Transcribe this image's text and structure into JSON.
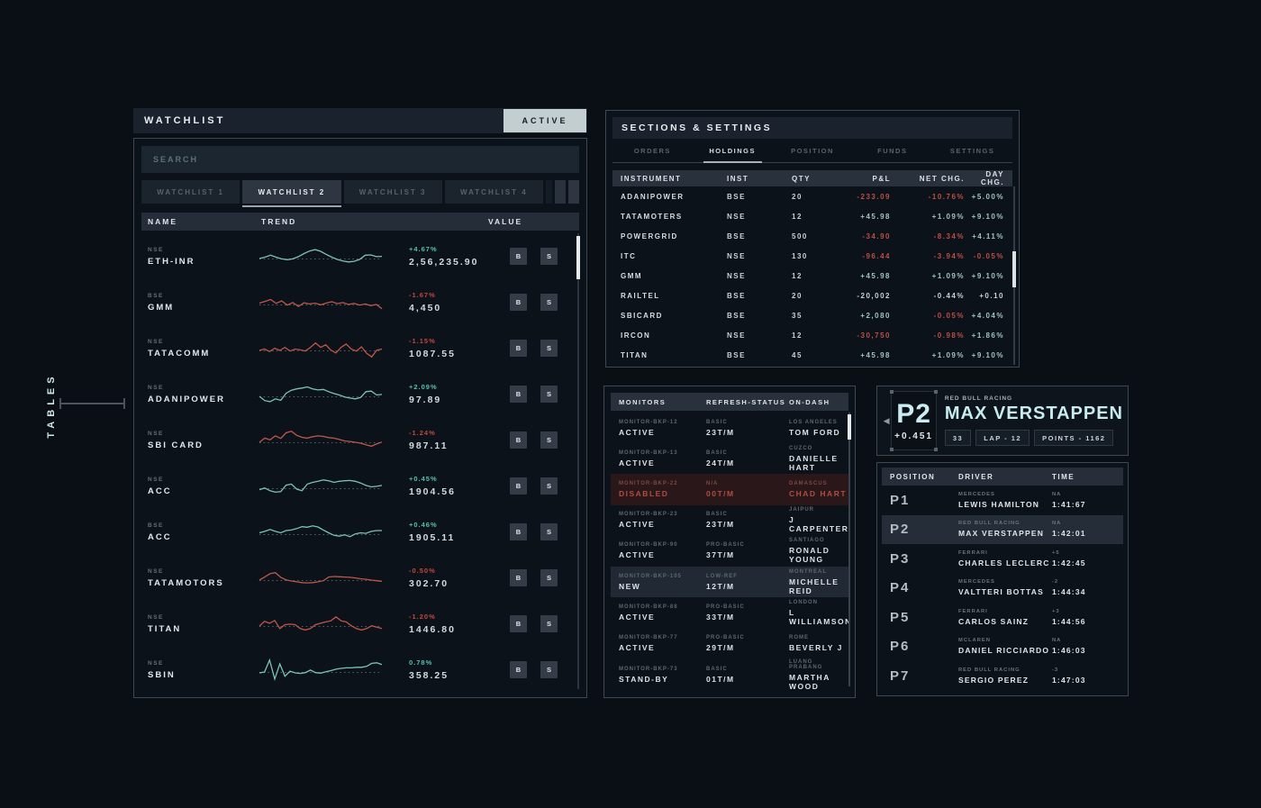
{
  "side_label": "TABLES",
  "colors": {
    "accent_teal": "#7cc2b9",
    "accent_red": "#bd574b",
    "highlight_cyan": "#c6ecef",
    "active_button_bg": "#c3ced1",
    "panel_bg": "#0c1219",
    "page_bg": "#0a0f15"
  },
  "watchlist": {
    "title": "WATCHLIST",
    "status": "ACTIVE",
    "search_placeholder": "SEARCH",
    "buy_label": "B",
    "sell_label": "S",
    "tabs": [
      {
        "label": "WATCHLIST 1",
        "active": false
      },
      {
        "label": "WATCHLIST 2",
        "active": true
      },
      {
        "label": "WATCHLIST 3",
        "active": false
      },
      {
        "label": "WATCHLIST 4",
        "active": false
      }
    ],
    "columns": [
      "NAME",
      "TREND",
      "VALUE"
    ],
    "rows": [
      {
        "exchange": "NSE",
        "name": "ETH-INR",
        "trend": "up",
        "pct": "+4.67%",
        "value": "2,56,235.90",
        "spark": [
          0.45,
          0.5,
          0.57,
          0.5,
          0.44,
          0.41,
          0.44,
          0.52,
          0.63,
          0.72,
          0.77,
          0.71,
          0.6,
          0.5,
          0.42,
          0.36,
          0.33,
          0.35,
          0.42,
          0.57,
          0.58,
          0.52,
          0.53
        ]
      },
      {
        "exchange": "BSE",
        "name": "GMM",
        "trend": "down",
        "pct": "-1.67%",
        "value": "4,450",
        "spark": [
          0.5,
          0.56,
          0.63,
          0.49,
          0.58,
          0.43,
          0.52,
          0.38,
          0.51,
          0.47,
          0.5,
          0.44,
          0.5,
          0.55,
          0.48,
          0.52,
          0.45,
          0.49,
          0.43,
          0.47,
          0.41,
          0.45,
          0.3
        ]
      },
      {
        "exchange": "NSE",
        "name": "TATACOMM",
        "trend": "down",
        "pct": "-1.15%",
        "value": "1087.55",
        "spark": [
          0.45,
          0.5,
          0.41,
          0.53,
          0.45,
          0.56,
          0.43,
          0.5,
          0.47,
          0.43,
          0.56,
          0.72,
          0.56,
          0.65,
          0.46,
          0.36,
          0.56,
          0.68,
          0.5,
          0.43,
          0.58,
          0.35,
          0.22,
          0.46,
          0.5
        ]
      },
      {
        "exchange": "NSE",
        "name": "ADANIPOWER",
        "trend": "up",
        "pct": "+2.09%",
        "value": "97.89",
        "spark": [
          0.45,
          0.3,
          0.26,
          0.36,
          0.31,
          0.56,
          0.67,
          0.72,
          0.75,
          0.79,
          0.72,
          0.68,
          0.7,
          0.62,
          0.55,
          0.5,
          0.43,
          0.39,
          0.36,
          0.41,
          0.62,
          0.64,
          0.5,
          0.52
        ]
      },
      {
        "exchange": "NSE",
        "name": "SBI CARD",
        "trend": "down",
        "pct": "-1.24%",
        "value": "987.11",
        "spark": [
          0.45,
          0.6,
          0.54,
          0.68,
          0.59,
          0.79,
          0.85,
          0.7,
          0.63,
          0.6,
          0.65,
          0.68,
          0.66,
          0.62,
          0.6,
          0.55,
          0.5,
          0.48,
          0.45,
          0.42,
          0.36,
          0.31,
          0.39,
          0.46
        ]
      },
      {
        "exchange": "NSE",
        "name": "ACC",
        "trend": "up",
        "pct": "+0.45%",
        "value": "1904.56",
        "spark": [
          0.4,
          0.46,
          0.36,
          0.31,
          0.33,
          0.56,
          0.6,
          0.42,
          0.36,
          0.6,
          0.66,
          0.7,
          0.75,
          0.72,
          0.66,
          0.7,
          0.72,
          0.73,
          0.7,
          0.64,
          0.55,
          0.5,
          0.52,
          0.55
        ]
      },
      {
        "exchange": "BSE",
        "name": "ACC",
        "trend": "up",
        "pct": "+0.46%",
        "value": "1905.11",
        "spark": [
          0.5,
          0.55,
          0.62,
          0.55,
          0.5,
          0.58,
          0.6,
          0.65,
          0.72,
          0.7,
          0.75,
          0.71,
          0.6,
          0.5,
          0.41,
          0.38,
          0.43,
          0.36,
          0.46,
          0.5,
          0.48,
          0.55,
          0.58,
          0.58
        ]
      },
      {
        "exchange": "NSE",
        "name": "TATAMOTORS",
        "trend": "down",
        "pct": "-0.50%",
        "value": "302.70",
        "spark": [
          0.45,
          0.56,
          0.68,
          0.72,
          0.55,
          0.46,
          0.42,
          0.39,
          0.36,
          0.35,
          0.36,
          0.39,
          0.43,
          0.56,
          0.58,
          0.57,
          0.56,
          0.55,
          0.53,
          0.5,
          0.48,
          0.45,
          0.43,
          0.41
        ]
      },
      {
        "exchange": "NSE",
        "name": "TITAN",
        "trend": "down",
        "pct": "-1.20%",
        "value": "1446.80",
        "spark": [
          0.45,
          0.62,
          0.55,
          0.65,
          0.36,
          0.5,
          0.52,
          0.5,
          0.36,
          0.31,
          0.36,
          0.5,
          0.55,
          0.6,
          0.64,
          0.78,
          0.64,
          0.6,
          0.46,
          0.36,
          0.31,
          0.36,
          0.46,
          0.41,
          0.36
        ]
      },
      {
        "exchange": "NSE",
        "name": "SBIN",
        "trend": "up",
        "pct": "0.78%",
        "value": "358.25",
        "spark": [
          0.42,
          0.45,
          0.88,
          0.2,
          0.74,
          0.3,
          0.48,
          0.42,
          0.4,
          0.43,
          0.52,
          0.43,
          0.41,
          0.46,
          0.5,
          0.55,
          0.58,
          0.6,
          0.6,
          0.62,
          0.62,
          0.65,
          0.76,
          0.78,
          0.72
        ]
      }
    ]
  },
  "sections": {
    "title": "SECTIONS & SETTINGS",
    "tabs": [
      {
        "label": "ORDERS",
        "active": false
      },
      {
        "label": "HOLDINGS",
        "active": true
      },
      {
        "label": "POSITION",
        "active": false
      },
      {
        "label": "FUNDS",
        "active": false
      },
      {
        "label": "SETTINGS",
        "active": false
      }
    ],
    "columns": [
      "INSTRUMENT",
      "INST",
      "QTY",
      "P&L",
      "NET CHG.",
      "DAY CHG."
    ],
    "rows": [
      {
        "instrument": "ADANIPOWER",
        "inst": "BSE",
        "qty": "20",
        "pnl": "-233.09",
        "pnl_c": "neg",
        "net": "-10.76%",
        "net_c": "neg",
        "day": "+5.00%",
        "day_c": "pos"
      },
      {
        "instrument": "TATAMOTERS",
        "inst": "NSE",
        "qty": "12",
        "pnl": "+45.98",
        "pnl_c": "pos",
        "net": "+1.09%",
        "net_c": "pos",
        "day": "+9.10%",
        "day_c": "pos"
      },
      {
        "instrument": "POWERGRID",
        "inst": "BSE",
        "qty": "500",
        "pnl": "-34.90",
        "pnl_c": "neg",
        "net": "-8.34%",
        "net_c": "neg",
        "day": "+4.11%",
        "day_c": "pos"
      },
      {
        "instrument": "ITC",
        "inst": "NSE",
        "qty": "130",
        "pnl": "-96.44",
        "pnl_c": "neg",
        "net": "-3.94%",
        "net_c": "neg",
        "day": "-0.05%",
        "day_c": "neg"
      },
      {
        "instrument": "GMM",
        "inst": "NSE",
        "qty": "12",
        "pnl": "+45.98",
        "pnl_c": "pos",
        "net": "+1.09%",
        "net_c": "pos",
        "day": "+9.10%",
        "day_c": "pos"
      },
      {
        "instrument": "RAILTEL",
        "inst": "BSE",
        "qty": "20",
        "pnl": "-20,002",
        "pnl_c": "white",
        "net": "-0.44%",
        "net_c": "white",
        "day": "+0.10",
        "day_c": "white"
      },
      {
        "instrument": "SBICARD",
        "inst": "BSE",
        "qty": "35",
        "pnl": "+2,080",
        "pnl_c": "pos",
        "net": "-0.05%",
        "net_c": "neg",
        "day": "+4.04%",
        "day_c": "pos"
      },
      {
        "instrument": "IRCON",
        "inst": "NSE",
        "qty": "12",
        "pnl": "-30,750",
        "pnl_c": "neg",
        "net": "-0.98%",
        "net_c": "neg",
        "day": "+1.86%",
        "day_c": "pos"
      },
      {
        "instrument": "TITAN",
        "inst": "BSE",
        "qty": "45",
        "pnl": "+45.98",
        "pnl_c": "pos",
        "net": "+1.09%",
        "net_c": "pos",
        "day": "+9.10%",
        "day_c": "pos"
      }
    ]
  },
  "monitors": {
    "columns": [
      "MONITORS",
      "REFRESH-STATUS",
      "ON-DASH"
    ],
    "rows": [
      {
        "id": "MONITOR-BKP-12",
        "status": "ACTIVE",
        "plan": "BASIC",
        "rate": "23T/M",
        "city": "LOS ANGELES",
        "owner": "TOM FORD",
        "variant": "normal"
      },
      {
        "id": "MONITOR-BKP-13",
        "status": "ACTIVE",
        "plan": "BASIC",
        "rate": "24T/M",
        "city": "CUZCO",
        "owner": "DANIELLE HART",
        "variant": "normal"
      },
      {
        "id": "MONITOR-BKP-22",
        "status": "DISABLED",
        "plan": "N/A",
        "rate": "00T/M",
        "city": "DAMASCUS",
        "owner": "CHAD HART",
        "variant": "disabled"
      },
      {
        "id": "MONITOR-BKP-23",
        "status": "ACTIVE",
        "plan": "BASIC",
        "rate": "23T/M",
        "city": "JAIPUR",
        "owner": "J CARPENTER",
        "variant": "normal"
      },
      {
        "id": "MONITOR-BKP-90",
        "status": "ACTIVE",
        "plan": "PRO-BASIC",
        "rate": "37T/M",
        "city": "SANTIAGO",
        "owner": "RONALD YOUNG",
        "variant": "normal"
      },
      {
        "id": "MONITOR-BKP-105",
        "status": "NEW",
        "plan": "LOW-REF",
        "rate": "12T/M",
        "city": "MONTREAL",
        "owner": "MICHELLE REID",
        "variant": "new"
      },
      {
        "id": "MONITOR-BKP-88",
        "status": "ACTIVE",
        "plan": "PRO-BASIC",
        "rate": "33T/M",
        "city": "LONDON",
        "owner": "L WILLIAMSON",
        "variant": "normal"
      },
      {
        "id": "MONITOR-BKP-77",
        "status": "ACTIVE",
        "plan": "PRO-BASIC",
        "rate": "29T/M",
        "city": "ROME",
        "owner": "BEVERLY J",
        "variant": "normal"
      },
      {
        "id": "MONITOR-BKP-73",
        "status": "STAND-BY",
        "plan": "BASIC",
        "rate": "01T/M",
        "city": "LUANG PRABANG",
        "owner": "MARTHA WOOD",
        "variant": "normal"
      }
    ]
  },
  "racing": {
    "card": {
      "arrow": "◀",
      "position": "P2",
      "gap": "+0.451",
      "team": "RED BULL RACING",
      "driver": "MAX VERSTAPPEN",
      "badges": [
        "33",
        "LAP - 12",
        "POINTS - 1162"
      ]
    },
    "table": {
      "columns": [
        "POSITION",
        "DRIVER",
        "TIME"
      ],
      "rows": [
        {
          "pos": "P1",
          "team": "MERCEDES",
          "driver": "LEWIS HAMILTON",
          "delta": "NA",
          "time": "1:41:67",
          "highlight": false
        },
        {
          "pos": "P2",
          "team": "RED BULL RACING",
          "driver": "MAX VERSTAPPEN",
          "delta": "NA",
          "time": "1:42:01",
          "highlight": true
        },
        {
          "pos": "P3",
          "team": "FERRARI",
          "driver": "CHARLES LECLERC",
          "delta": "+5",
          "time": "1:42:45",
          "highlight": false
        },
        {
          "pos": "P4",
          "team": "MERCEDES",
          "driver": "VALTTERI BOTTAS",
          "delta": "-2",
          "time": "1:44:34",
          "highlight": false
        },
        {
          "pos": "P5",
          "team": "FERRARI",
          "driver": "CARLOS SAINZ",
          "delta": "+3",
          "time": "1:44:56",
          "highlight": false
        },
        {
          "pos": "P6",
          "team": "MCLAREN",
          "driver": "DANIEL RICCIARDO",
          "delta": "NA",
          "time": "1:46:03",
          "highlight": false
        },
        {
          "pos": "P7",
          "team": "RED BULL RACING",
          "driver": "SERGIO PEREZ",
          "delta": "-3",
          "time": "1:47:03",
          "highlight": false
        }
      ]
    }
  }
}
